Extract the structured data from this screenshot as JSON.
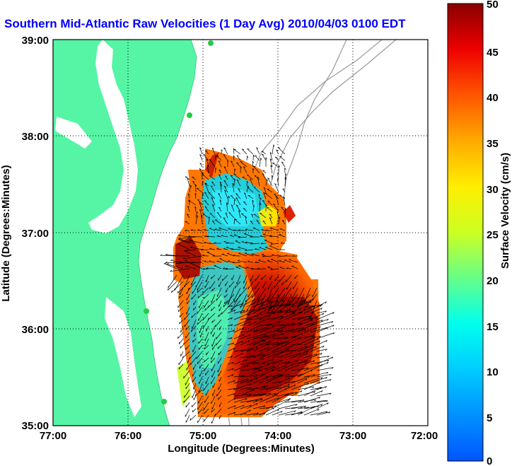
{
  "title": "Southern Mid-Atlantic Raw Velocities (1 Day Avg) 2010/04/03 0100 EDT",
  "x_axis": {
    "label": "Longitude (Degrees:Minutes)",
    "ticks": [
      "77:00",
      "76:00",
      "75:00",
      "74:00",
      "73:00",
      "72:00"
    ]
  },
  "y_axis": {
    "label": "Latitude (Degrees:Minutes)",
    "ticks": [
      "39:00",
      "38:00",
      "37:00",
      "36:00",
      "35:00"
    ]
  },
  "colorbar": {
    "label": "Surface Velocity (cm/s)",
    "ticks": [
      "50",
      "45",
      "40",
      "35",
      "30",
      "25",
      "20",
      "15",
      "10",
      "5",
      "0"
    ],
    "min": 0,
    "max": 50
  },
  "colors": {
    "land": "#55f5a5",
    "water": "#ffffff",
    "title": "#0000ff",
    "bathymetry": "#999999",
    "grid": "#000000"
  },
  "map": {
    "lon_range": [
      -77,
      -72
    ],
    "lat_range": [
      35,
      39
    ],
    "grid": "dotted"
  }
}
